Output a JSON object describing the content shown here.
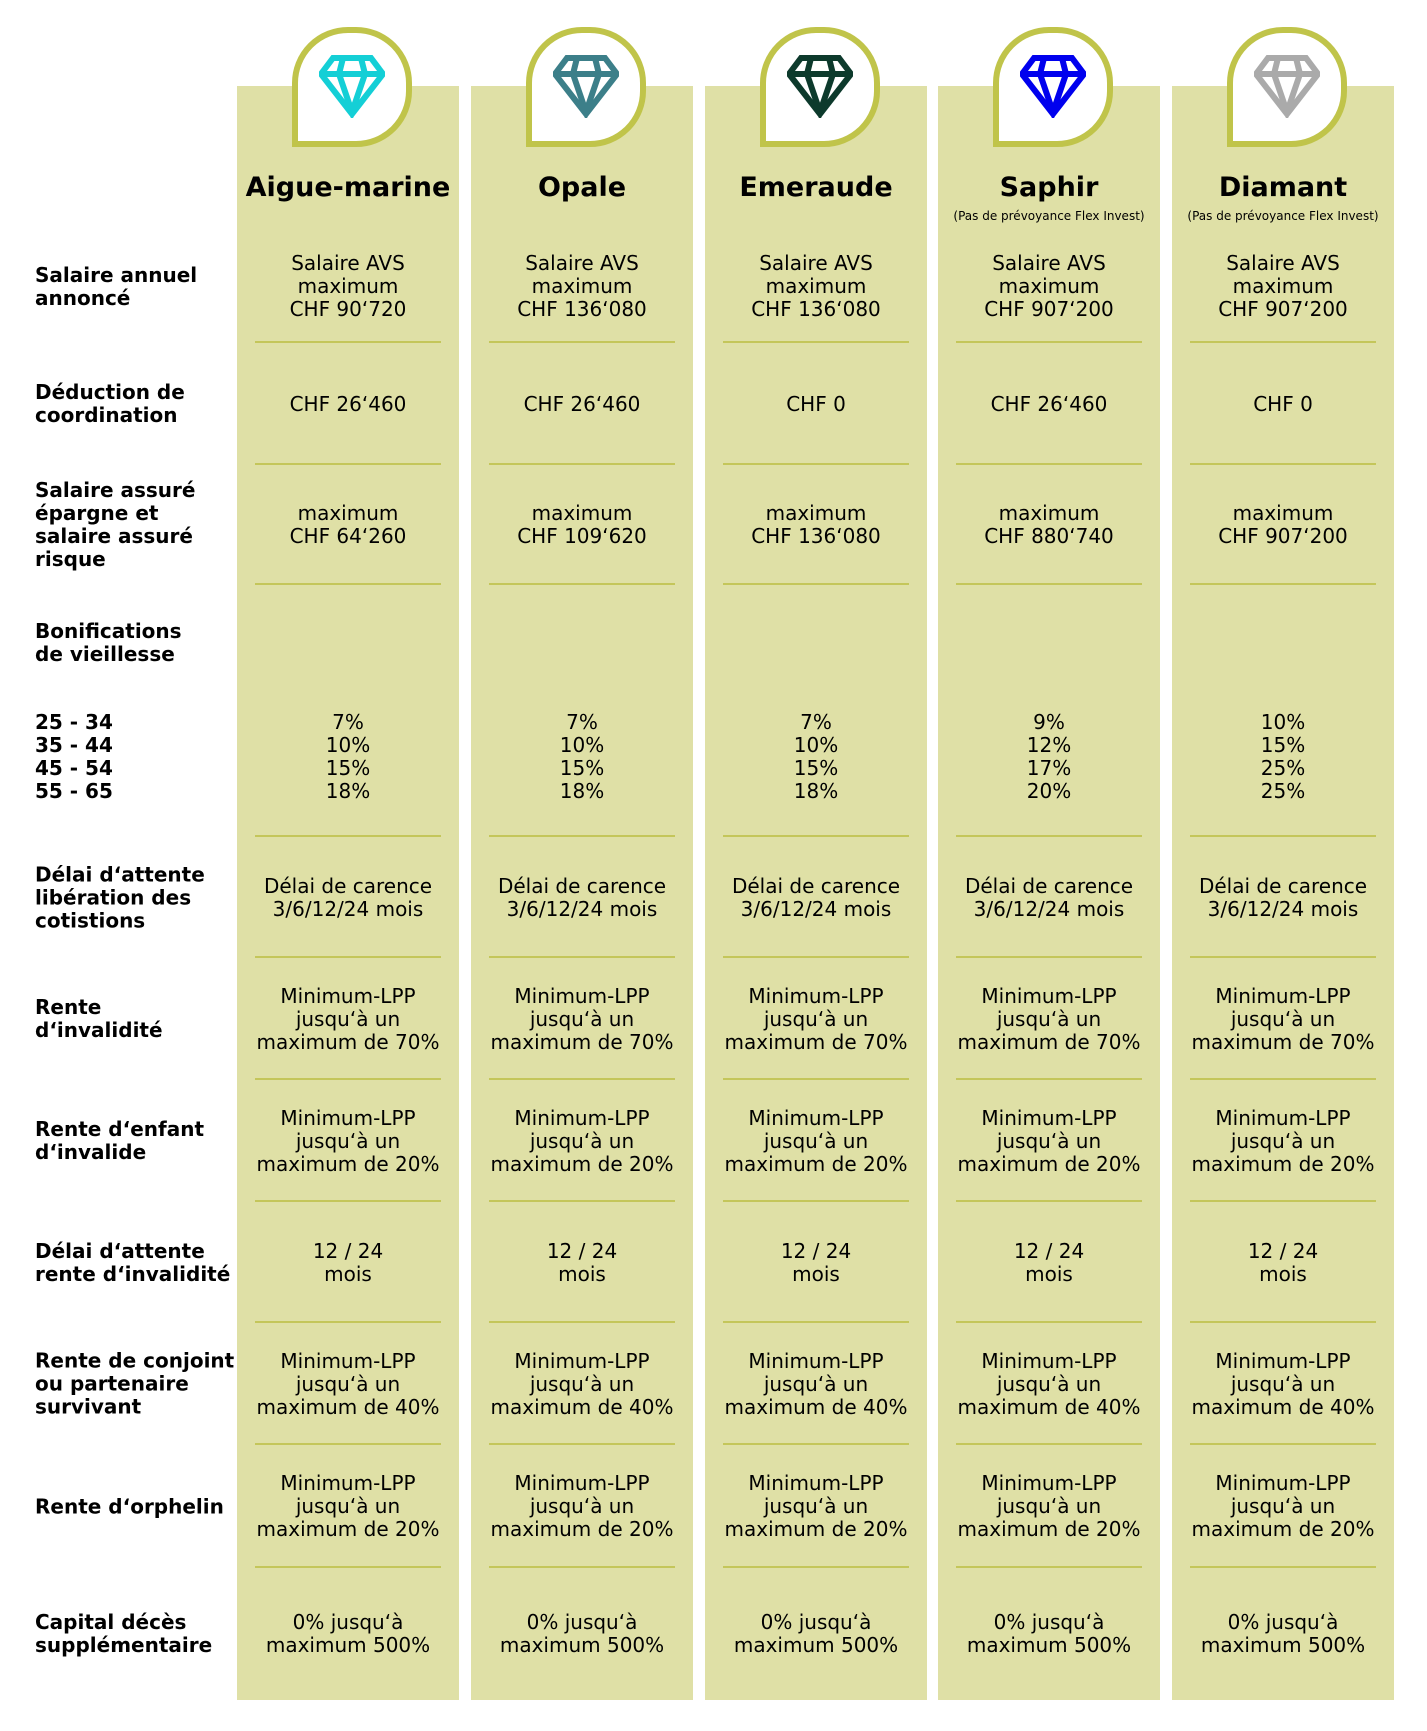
{
  "colors": {
    "column_bg": "#dfe0a6",
    "tab_border": "#c0c44a",
    "separator": "#c4c65a"
  },
  "plans": [
    {
      "name": "Aigue-marine",
      "subtitle": "",
      "icon": "diamond-icon",
      "color": "#14cfd6"
    },
    {
      "name": "Opale",
      "subtitle": "",
      "icon": "diamond-icon",
      "color": "#3c7f89"
    },
    {
      "name": "Emeraude",
      "subtitle": "",
      "icon": "diamond-icon",
      "color": "#0d3a2c"
    },
    {
      "name": "Saphir",
      "subtitle": "(Pas de prévoyance Flex Invest)",
      "icon": "diamond-icon",
      "color": "#0000ee"
    },
    {
      "name": "Diamant",
      "subtitle": "(Pas de prévoyance Flex Invest)",
      "icon": "diamond-icon",
      "color": "#aaaaaa"
    }
  ],
  "rows": [
    {
      "label": "Salaire annuel annoncé",
      "values": [
        "Salaire AVS\nmaximum\nCHF 90‘720",
        "Salaire AVS\nmaximum\nCHF 136‘080",
        "Salaire AVS\nmaximum\nCHF 136‘080",
        "Salaire AVS\nmaximum\nCHF 907‘200",
        "Salaire AVS\nmaximum\nCHF 907‘200"
      ]
    },
    {
      "label": "Déduction de coordination",
      "values": [
        "CHF 26‘460",
        "CHF 26‘460",
        "CHF 0",
        "CHF 26‘460",
        "CHF 0"
      ]
    },
    {
      "label": "Salaire assuré épargne et salaire assuré risque",
      "values": [
        "maximum\nCHF 64‘260",
        "maximum\nCHF 109‘620",
        "maximum\nCHF 136‘080",
        "maximum\nCHF 880‘740",
        "maximum\nCHF 907‘200"
      ]
    },
    {
      "label": "Bonifications\nde vieillesse",
      "ages": [
        "25 - 34",
        "35 - 44",
        "45 - 54",
        "55 - 65"
      ],
      "values": [
        [
          "7%",
          "10%",
          "15%",
          "18%"
        ],
        [
          "7%",
          "10%",
          "15%",
          "18%"
        ],
        [
          "7%",
          "10%",
          "15%",
          "18%"
        ],
        [
          "9%",
          "12%",
          "17%",
          "20%"
        ],
        [
          "10%",
          "15%",
          "25%",
          "25%"
        ]
      ]
    },
    {
      "label": "Délai d‘attente libération des cotistions",
      "values": [
        "Délai de carence\n3/6/12/24 mois",
        "Délai de carence\n3/6/12/24 mois",
        "Délai de carence\n3/6/12/24 mois",
        "Délai de carence\n3/6/12/24 mois",
        "Délai de carence\n3/6/12/24 mois"
      ]
    },
    {
      "label": "Rente d‘invalidité",
      "values": [
        "Minimum-LPP\njusqu‘à un\nmaximum de 70%",
        "Minimum-LPP\njusqu‘à un\nmaximum de 70%",
        "Minimum-LPP\njusqu‘à un\nmaximum de 70%",
        "Minimum-LPP\njusqu‘à un\nmaximum de 70%",
        "Minimum-LPP\njusqu‘à un\nmaximum de 70%"
      ]
    },
    {
      "label": "Rente d‘enfant d‘invalide",
      "values": [
        "Minimum-LPP\njusqu‘à un\nmaximum de 20%",
        "Minimum-LPP\njusqu‘à un\nmaximum de 20%",
        "Minimum-LPP\njusqu‘à un\nmaximum de 20%",
        "Minimum-LPP\njusqu‘à un\nmaximum de 20%",
        "Minimum-LPP\njusqu‘à un\nmaximum de 20%"
      ]
    },
    {
      "label": "Délai d‘attente rente d‘invalidité",
      "values": [
        "12 / 24\nmois",
        "12 / 24\nmois",
        "12 / 24\nmois",
        "12 / 24\nmois",
        "12 / 24\nmois"
      ]
    },
    {
      "label": "Rente de conjoint ou partenaire survivant",
      "values": [
        "Minimum-LPP\njusqu‘à un\nmaximum de 40%",
        "Minimum-LPP\njusqu‘à un\nmaximum de 40%",
        "Minimum-LPP\njusqu‘à un\nmaximum de 40%",
        "Minimum-LPP\njusqu‘à un\nmaximum de 40%",
        "Minimum-LPP\njusqu‘à un\nmaximum de 40%"
      ]
    },
    {
      "label": "Rente d‘orphelin",
      "values": [
        "Minimum-LPP\njusqu‘à un\nmaximum de 20%",
        "Minimum-LPP\njusqu‘à un\nmaximum de 20%",
        "Minimum-LPP\njusqu‘à un\nmaximum de 20%",
        "Minimum-LPP\njusqu‘à un\nmaximum de 20%",
        "Minimum-LPP\njusqu‘à un\nmaximum de 20%"
      ]
    },
    {
      "label": "Capital décès supplémentaire",
      "values": [
        "0% jusqu‘à\nmaximum 500%",
        "0% jusqu‘à\nmaximum 500%",
        "0% jusqu‘à\nmaximum 500%",
        "0% jusqu‘à\nmaximum 500%",
        "0% jusqu‘à\nmaximum 500%"
      ]
    }
  ]
}
